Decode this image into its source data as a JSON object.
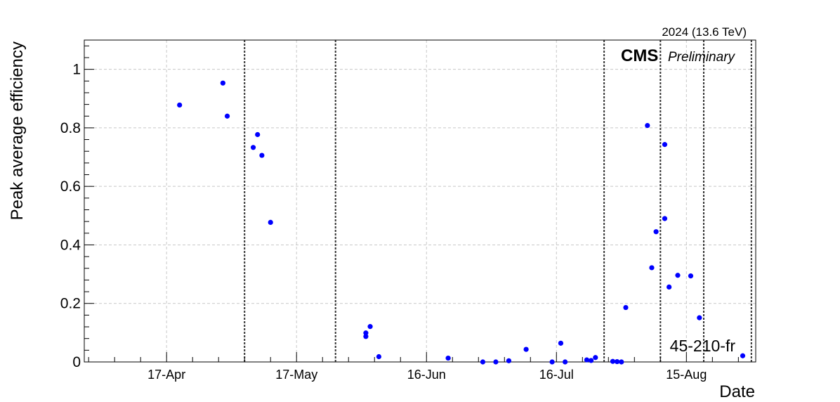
{
  "header": {
    "energy_label": "2024 (13.6 TeV)",
    "experiment": "CMS",
    "status": "Preliminary",
    "corner_label": "45-210-fr"
  },
  "chart_data": {
    "type": "scatter",
    "xlabel": "Date",
    "ylabel": "Peak average efficiency",
    "x_axis_type": "date",
    "xlim": [
      "2024-03-29",
      "2024-08-31"
    ],
    "ylim": [
      0,
      1.1
    ],
    "x_ticks": [
      {
        "date": "2024-04-17",
        "label": "17-Apr"
      },
      {
        "date": "2024-05-17",
        "label": "17-May"
      },
      {
        "date": "2024-06-16",
        "label": "16-Jun"
      },
      {
        "date": "2024-07-16",
        "label": "16-Jul"
      },
      {
        "date": "2024-08-15",
        "label": "15-Aug"
      }
    ],
    "y_ticks": [
      0,
      0.2,
      0.4,
      0.6,
      0.8,
      1
    ],
    "grid": true,
    "marker_color": "#0000ff",
    "vertical_lines": [
      "2024-05-05",
      "2024-05-26",
      "2024-07-27",
      "2024-08-09",
      "2024-08-19",
      "2024-08-30"
    ],
    "points": [
      {
        "x": "2024-04-20",
        "y": 0.878
      },
      {
        "x": "2024-04-30",
        "y": 0.953
      },
      {
        "x": "2024-05-01",
        "y": 0.84
      },
      {
        "x": "2024-05-07",
        "y": 0.733
      },
      {
        "x": "2024-05-08",
        "y": 0.777
      },
      {
        "x": "2024-05-09",
        "y": 0.706
      },
      {
        "x": "2024-05-11",
        "y": 0.477
      },
      {
        "x": "2024-06-02",
        "y": 0.087
      },
      {
        "x": "2024-06-02",
        "y": 0.099
      },
      {
        "x": "2024-06-03",
        "y": 0.121
      },
      {
        "x": "2024-06-05",
        "y": 0.018
      },
      {
        "x": "2024-06-21",
        "y": 0.013
      },
      {
        "x": "2024-06-29",
        "y": 0.0
      },
      {
        "x": "2024-07-02",
        "y": 0.0
      },
      {
        "x": "2024-07-05",
        "y": 0.004
      },
      {
        "x": "2024-07-09",
        "y": 0.043
      },
      {
        "x": "2024-07-15",
        "y": 0.0
      },
      {
        "x": "2024-07-17",
        "y": 0.064
      },
      {
        "x": "2024-07-18",
        "y": 0.0
      },
      {
        "x": "2024-07-23",
        "y": 0.007
      },
      {
        "x": "2024-07-24",
        "y": 0.005
      },
      {
        "x": "2024-07-25",
        "y": 0.015
      },
      {
        "x": "2024-07-29",
        "y": 0.002
      },
      {
        "x": "2024-07-30",
        "y": 0.001
      },
      {
        "x": "2024-07-31",
        "y": 0.0
      },
      {
        "x": "2024-08-01",
        "y": 0.186
      },
      {
        "x": "2024-08-06",
        "y": 0.808
      },
      {
        "x": "2024-08-07",
        "y": 0.322
      },
      {
        "x": "2024-08-08",
        "y": 0.445
      },
      {
        "x": "2024-08-10",
        "y": 0.49
      },
      {
        "x": "2024-08-10",
        "y": 0.743
      },
      {
        "x": "2024-08-11",
        "y": 0.256
      },
      {
        "x": "2024-08-13",
        "y": 0.296
      },
      {
        "x": "2024-08-16",
        "y": 0.294
      },
      {
        "x": "2024-08-18",
        "y": 0.151
      },
      {
        "x": "2024-08-28",
        "y": 0.021
      }
    ]
  }
}
